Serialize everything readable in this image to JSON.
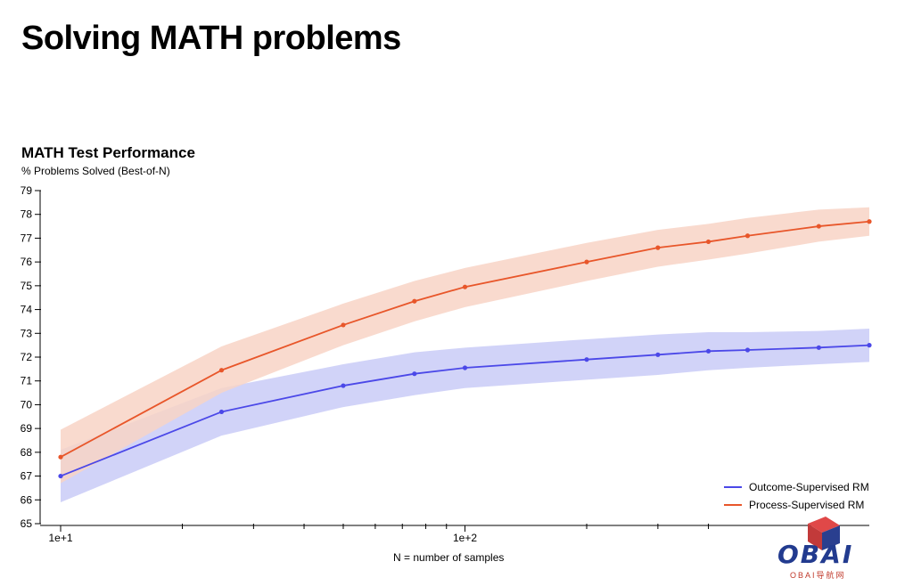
{
  "page": {
    "title": "Solving MATH problems"
  },
  "chart_data": {
    "type": "line",
    "title": "MATH Test Performance",
    "ylabel": "% Problems Solved (Best-of-N)",
    "xlabel": "N = number of samples",
    "x_scale": "log",
    "xlim": [
      10,
      1000
    ],
    "ylim": [
      65,
      79
    ],
    "y_ticks": [
      65,
      66,
      67,
      68,
      69,
      70,
      71,
      72,
      73,
      74,
      75,
      76,
      77,
      78,
      79
    ],
    "x_tick_labels": [
      "1e+1",
      "1e+2"
    ],
    "x_minor_ticks": [
      20,
      30,
      40,
      50,
      60,
      70,
      80,
      90,
      200,
      300,
      400
    ],
    "x": [
      10,
      25,
      50,
      75,
      100,
      200,
      300,
      400,
      500,
      750,
      1000
    ],
    "series": [
      {
        "name": "Outcome-Supervised RM",
        "color": "#4b48e8",
        "band_color": "#c9cbf7",
        "values": [
          67.0,
          69.7,
          70.8,
          71.3,
          71.55,
          71.9,
          72.1,
          72.25,
          72.3,
          72.4,
          72.5
        ],
        "lower": [
          65.9,
          68.7,
          69.9,
          70.4,
          70.7,
          71.05,
          71.25,
          71.45,
          71.55,
          71.7,
          71.8
        ],
        "upper": [
          68.1,
          70.7,
          71.7,
          72.2,
          72.4,
          72.75,
          72.95,
          73.05,
          73.05,
          73.1,
          73.2
        ]
      },
      {
        "name": "Process-Supervised RM",
        "color": "#e8562a",
        "band_color": "#f8d3c5",
        "values": [
          67.8,
          71.45,
          73.35,
          74.35,
          74.95,
          76.0,
          76.6,
          76.85,
          77.1,
          77.5,
          77.7
        ],
        "lower": [
          66.7,
          70.5,
          72.5,
          73.5,
          74.1,
          75.2,
          75.8,
          76.1,
          76.35,
          76.85,
          77.1
        ],
        "upper": [
          68.95,
          72.45,
          74.25,
          75.2,
          75.75,
          76.8,
          77.35,
          77.6,
          77.85,
          78.2,
          78.3
        ]
      }
    ],
    "legend_position": "bottom-right",
    "grid": false
  },
  "watermark": {
    "text": "OBAI",
    "subtext": "OBAI导航网"
  }
}
